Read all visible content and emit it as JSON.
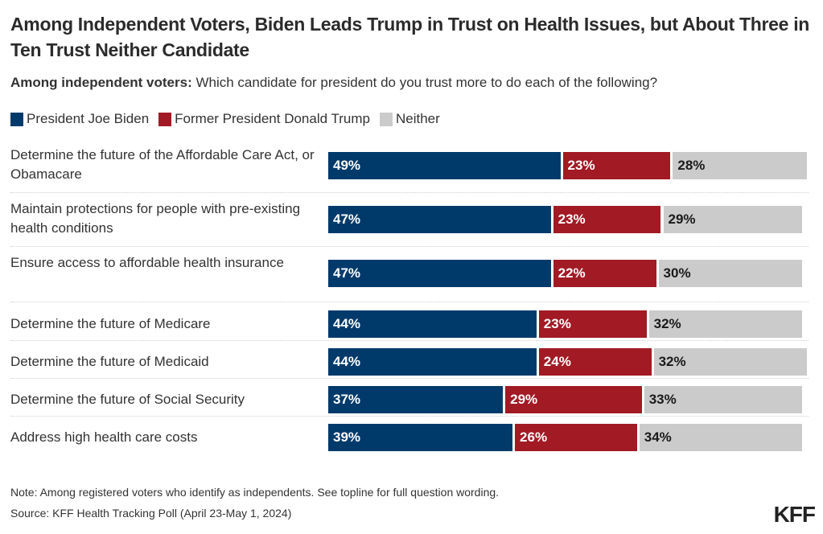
{
  "header": {
    "title": "Among Independent Voters, Biden Leads Trump in Trust on Health Issues, but About Three in Ten Trust Neither Candidate",
    "subtitle_bold": "Among independent voters:",
    "subtitle_rest": " Which candidate for president do you trust more to do each of the following?"
  },
  "colors": {
    "biden": "#003a6b",
    "trump": "#a21a24",
    "neither": "#cbcbcb",
    "label_on_dark": "#ffffff",
    "label_on_light": "#1a1a1a"
  },
  "chart_data": {
    "type": "bar",
    "orientation": "horizontal",
    "stacked": true,
    "title": "Among Independent Voters, Biden Leads Trump in Trust on Health Issues, but About Three in Ten Trust Neither Candidate",
    "subtitle": "Among independent voters: Which candidate for president do you trust more to do each of the following?",
    "xlabel": "",
    "ylabel": "",
    "xlim": [
      0,
      100
    ],
    "grid": false,
    "legend_position": "top-left",
    "categories": [
      "Determine the future of the Affordable Care Act, or Obamacare",
      "Maintain protections for people with pre-existing health conditions",
      "Ensure access to affordable health insurance",
      "Determine the future of Medicare",
      "Determine the future of Medicaid",
      "Determine the future of Social Security",
      "Address high health care costs"
    ],
    "series": [
      {
        "name": "President Joe Biden",
        "key": "biden",
        "values": [
          49,
          47,
          47,
          44,
          44,
          37,
          39
        ]
      },
      {
        "name": "Former President Donald Trump",
        "key": "trump",
        "values": [
          23,
          23,
          22,
          23,
          24,
          29,
          26
        ]
      },
      {
        "name": "Neither",
        "key": "neither",
        "values": [
          28,
          29,
          30,
          32,
          32,
          33,
          34
        ]
      }
    ]
  },
  "legend": [
    {
      "label": "President Joe Biden",
      "key": "biden"
    },
    {
      "label": "Former President Donald Trump",
      "key": "trump"
    },
    {
      "label": "Neither",
      "key": "neither"
    }
  ],
  "footer": {
    "note": "Note: Among registered voters who identify as independents. See topline for full question wording.",
    "source": "Source: KFF Health Tracking Poll (April 23-May 1, 2024)",
    "logo": "KFF"
  }
}
